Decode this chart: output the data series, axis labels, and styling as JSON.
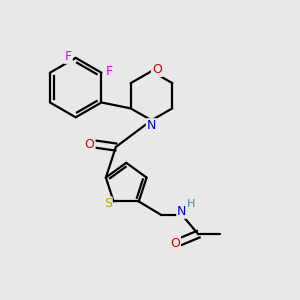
{
  "background_color": "#e8e8e8",
  "atom_colors": {
    "C": "#000000",
    "N": "#0000cc",
    "O": "#cc0000",
    "S": "#aaaa00",
    "F": "#ee00ee",
    "H": "#4488aa"
  },
  "bond_color": "#000000",
  "bond_width": 1.6,
  "figsize": [
    3.0,
    3.0
  ],
  "dpi": 100,
  "xlim": [
    0,
    10
  ],
  "ylim": [
    0,
    10
  ]
}
